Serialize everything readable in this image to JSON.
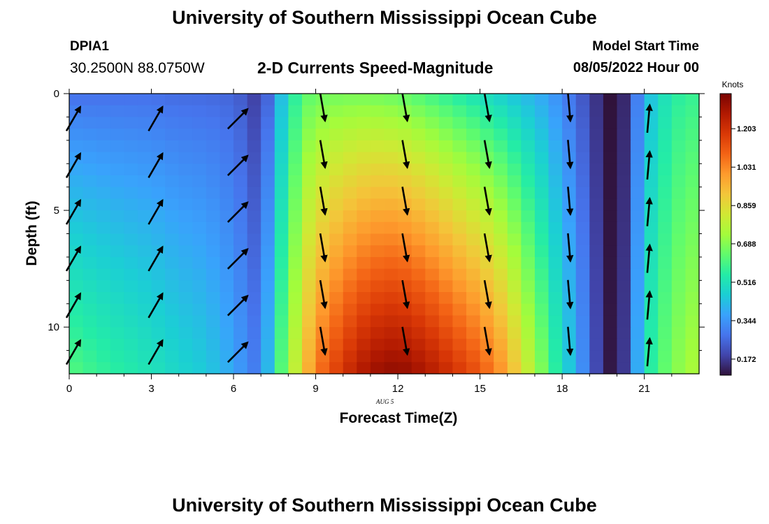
{
  "header": {
    "title": "University of Southern Mississippi Ocean Cube",
    "station_id": "DPIA1",
    "coordinates": "30.2500N  88.0750W",
    "product": "2-D Currents Speed-Magnitude",
    "model_start_label": "Model Start Time",
    "model_start_value": "08/05/2022 Hour 00"
  },
  "footer": {
    "title": "University of Southern Mississippi Ocean Cube"
  },
  "chart_data": {
    "type": "heatmap",
    "xlabel": "Forecast Time(Z)",
    "ylabel": "Depth (ft)",
    "date_label": "AUG 5",
    "x_ticks": [
      0,
      3,
      6,
      9,
      12,
      15,
      18,
      21
    ],
    "y_ticks": [
      0,
      5,
      10
    ],
    "xlim": [
      0,
      23
    ],
    "ylim": [
      0,
      12
    ],
    "colorbar": {
      "label": "Knots",
      "ticks": [
        "0.172",
        "0.344",
        "0.516",
        "0.688",
        "0.859",
        "1.031",
        "1.203"
      ],
      "range": [
        0.1,
        1.36
      ],
      "colors": [
        "#30123b",
        "#4145ab",
        "#4675ed",
        "#39a2fc",
        "#1bcfd4",
        "#24eca6",
        "#61fc6c",
        "#a4fc3b",
        "#d1e834",
        "#f3c63a",
        "#fe9b2d",
        "#f36315",
        "#d93806",
        "#b11901",
        "#7a0402"
      ]
    },
    "speed_profile": {
      "hours": [
        0,
        1,
        2,
        3,
        4,
        5,
        6,
        6.5,
        7,
        7.5,
        8,
        8.5,
        9,
        10,
        11,
        12,
        13,
        14,
        15,
        16,
        16.5,
        17,
        17.5,
        18,
        18.5,
        19,
        19.5,
        20,
        20.5,
        21,
        22,
        22.9
      ],
      "surface": [
        0.27,
        0.27,
        0.27,
        0.27,
        0.26,
        0.26,
        0.25,
        0.22,
        0.15,
        0.35,
        0.5,
        0.62,
        0.65,
        0.66,
        0.66,
        0.64,
        0.6,
        0.55,
        0.5,
        0.45,
        0.42,
        0.4,
        0.36,
        0.32,
        0.25,
        0.2,
        0.12,
        0.08,
        0.2,
        0.4,
        0.55,
        0.58
      ],
      "bottom": [
        0.62,
        0.58,
        0.55,
        0.52,
        0.48,
        0.45,
        0.38,
        0.32,
        0.28,
        0.55,
        0.7,
        0.88,
        1.05,
        1.2,
        1.3,
        1.33,
        1.28,
        1.2,
        1.12,
        0.98,
        0.85,
        0.74,
        0.62,
        0.5,
        0.4,
        0.26,
        0.14,
        0.08,
        0.26,
        0.52,
        0.68,
        0.75
      ]
    },
    "vectors": {
      "hours": [
        0,
        3,
        6,
        9,
        12,
        15,
        18,
        21
      ],
      "depths": [
        1,
        3,
        5,
        7,
        9,
        11
      ],
      "direction_deg": [
        30,
        30,
        45,
        170,
        170,
        170,
        175,
        5
      ],
      "arrow_depth_hours": [
        0,
        3,
        6,
        21
      ],
      "arrow_depths": [
        1.5,
        3.5,
        5.5,
        7.5,
        9.5,
        11.5
      ]
    }
  }
}
